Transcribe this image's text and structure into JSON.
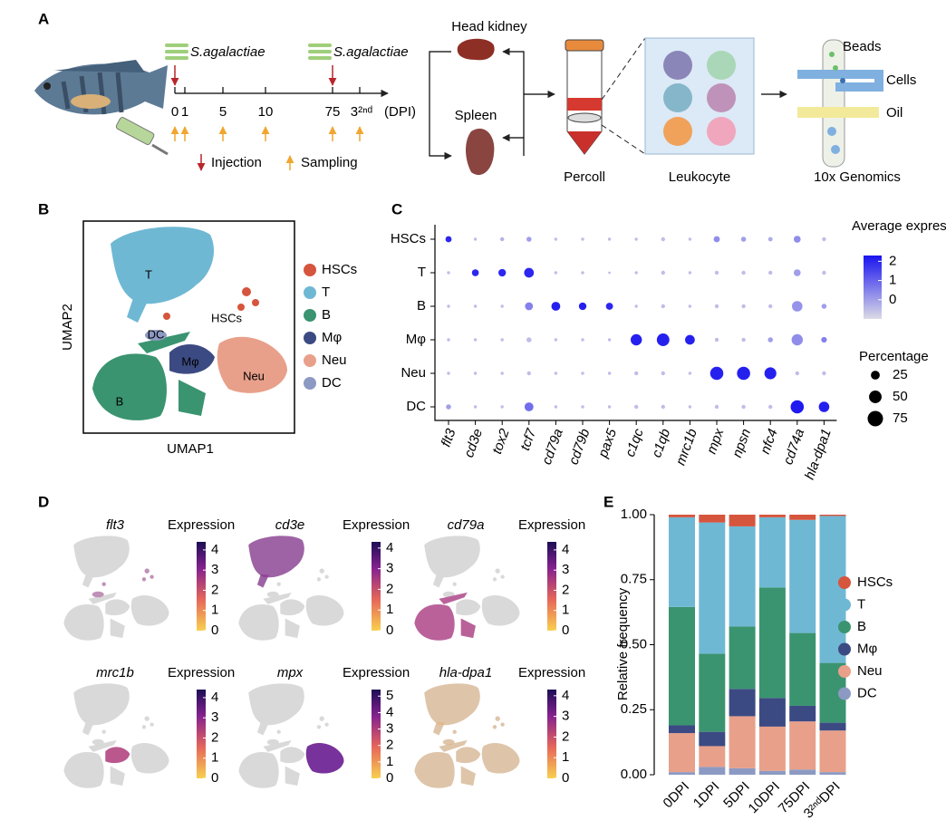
{
  "panels": [
    "A",
    "B",
    "C",
    "D",
    "E"
  ],
  "schematic": {
    "pathogen": "S.agalactiae",
    "timeline": [
      "0",
      "1",
      "5",
      "10",
      "75",
      "3²ⁿᵈ"
    ],
    "timeline_unit": "(DPI)",
    "injection": "Injection",
    "sampling": "Sampling",
    "organs": [
      "Head kidney",
      "Spleen"
    ],
    "steps": [
      "Percoll",
      "Leukocyte",
      "10x Genomics"
    ],
    "droplet_labels": [
      "Beads",
      "Cells",
      "Oil"
    ]
  },
  "umap": {
    "xlabel": "UMAP1",
    "ylabel": "UMAP2",
    "clusters": [
      {
        "name": "HSCs",
        "color": "#d6553d"
      },
      {
        "name": "T",
        "color": "#6fb8d4"
      },
      {
        "name": "B",
        "color": "#3a9470"
      },
      {
        "name": "Mφ",
        "color": "#3c4a83"
      },
      {
        "name": "Neu",
        "color": "#e8a08a"
      },
      {
        "name": "DC",
        "color": "#8c9ac3"
      }
    ]
  },
  "feature_plots": {
    "colorbar_title": "Expression",
    "plots": [
      {
        "gene": "flt3",
        "lim": [
          0,
          4.4
        ],
        "ticks": [
          0,
          1,
          2,
          3,
          4
        ]
      },
      {
        "gene": "cd3e",
        "lim": [
          0,
          4.3
        ],
        "ticks": [
          0,
          1,
          2,
          3,
          4
        ]
      },
      {
        "gene": "cd79a",
        "lim": [
          0,
          4.4
        ],
        "ticks": [
          0,
          1,
          2,
          3,
          4
        ]
      },
      {
        "gene": "mrc1b",
        "lim": [
          0,
          4.4
        ],
        "ticks": [
          0,
          1,
          2,
          3,
          4
        ]
      },
      {
        "gene": "mpx",
        "lim": [
          0,
          5.4
        ],
        "ticks": [
          0,
          1,
          2,
          3,
          4,
          5
        ]
      },
      {
        "gene": "hla-dpa1",
        "lim": [
          0,
          4.3
        ],
        "ticks": [
          0,
          1,
          2,
          3,
          4
        ]
      }
    ]
  },
  "chart_data": [
    {
      "type": "dot",
      "categories": [
        "flt3",
        "cd3e",
        "tox2",
        "tcf7",
        "cd79a",
        "cd79b",
        "pax5",
        "c1qc",
        "c1qb",
        "mrc1b",
        "mpx",
        "npsn",
        "nfc4",
        "cd74a",
        "hla-dpa1"
      ],
      "series": [
        {
          "name": "HSCs",
          "values": [
            2.0,
            -0.5,
            -0.3,
            0,
            -0.5,
            -0.5,
            -0.5,
            -0.5,
            -0.5,
            -0.5,
            0.3,
            0,
            -0.2,
            0.3,
            -0.5
          ],
          "sizes": [
            12,
            3,
            5,
            8,
            3,
            3,
            3,
            3,
            5,
            3,
            12,
            8,
            6,
            15,
            5
          ]
        },
        {
          "name": "T",
          "values": [
            -0.5,
            2.0,
            2.0,
            2.0,
            -0.5,
            -0.5,
            -0.5,
            -0.5,
            -0.5,
            -0.5,
            -0.5,
            -0.5,
            -0.5,
            0,
            -0.5
          ],
          "sizes": [
            3,
            15,
            18,
            30,
            3,
            3,
            2,
            3,
            5,
            3,
            5,
            5,
            5,
            15,
            5
          ]
        },
        {
          "name": "B",
          "values": [
            -0.5,
            -0.5,
            -0.5,
            0.5,
            2.1,
            2.1,
            2.0,
            -0.5,
            -0.5,
            -0.5,
            -0.5,
            -0.5,
            -0.5,
            0.2,
            0
          ],
          "sizes": [
            3,
            3,
            3,
            20,
            25,
            18,
            16,
            3,
            5,
            3,
            5,
            5,
            5,
            35,
            8
          ]
        },
        {
          "name": "Mφ",
          "values": [
            -0.5,
            -0.5,
            -0.5,
            -0.5,
            -0.5,
            -0.5,
            -0.5,
            2.1,
            2.1,
            2.1,
            -0.5,
            -0.5,
            0,
            0.3,
            0.5
          ],
          "sizes": [
            3,
            3,
            3,
            8,
            3,
            3,
            3,
            40,
            50,
            30,
            5,
            5,
            8,
            40,
            10
          ]
        },
        {
          "name": "Neu",
          "values": [
            -0.5,
            -0.5,
            -0.5,
            -0.5,
            -0.5,
            -0.5,
            -0.5,
            -0.5,
            -0.5,
            -0.5,
            2.1,
            2.1,
            2.1,
            -0.5,
            -0.5
          ],
          "sizes": [
            3,
            3,
            3,
            5,
            3,
            3,
            3,
            5,
            5,
            3,
            55,
            55,
            45,
            5,
            5
          ]
        },
        {
          "name": "DC",
          "values": [
            0,
            -0.5,
            -0.5,
            0.8,
            -0.5,
            -0.5,
            -0.5,
            -0.5,
            -0.5,
            -0.5,
            -0.5,
            -0.5,
            -0.5,
            2.2,
            2.1
          ],
          "sizes": [
            8,
            3,
            3,
            25,
            3,
            3,
            3,
            5,
            5,
            3,
            5,
            5,
            5,
            55,
            35
          ]
        }
      ],
      "color_title": "Average expression",
      "colorlim": [
        -1,
        2.3
      ],
      "colorticks": [
        0,
        1,
        2
      ],
      "colors": [
        "#dcdbe6",
        "#1a14f0"
      ],
      "size_title": "Percentage",
      "size_ticks": [
        25,
        50,
        75
      ]
    },
    {
      "type": "bar",
      "stacked": true,
      "categories": [
        "0DPI",
        "1DPI",
        "5DPI",
        "10DPI",
        "75DPI",
        "3²ⁿᵈDPI"
      ],
      "series": [
        {
          "name": "HSCs",
          "color": "#d6553d",
          "values": [
            0.01,
            0.03,
            0.045,
            0.01,
            0.02,
            0.005
          ]
        },
        {
          "name": "T",
          "color": "#6fb8d4",
          "values": [
            0.345,
            0.505,
            0.385,
            0.27,
            0.435,
            0.565
          ]
        },
        {
          "name": "B",
          "color": "#3a9470",
          "values": [
            0.455,
            0.3,
            0.24,
            0.425,
            0.28,
            0.23
          ]
        },
        {
          "name": "Mφ",
          "color": "#3c4a83",
          "values": [
            0.03,
            0.055,
            0.105,
            0.11,
            0.06,
            0.03
          ]
        },
        {
          "name": "Neu",
          "color": "#e8a08a",
          "values": [
            0.15,
            0.08,
            0.2,
            0.17,
            0.185,
            0.16
          ]
        },
        {
          "name": "DC",
          "color": "#8c9ac3",
          "values": [
            0.01,
            0.03,
            0.025,
            0.015,
            0.02,
            0.01
          ]
        }
      ],
      "ylabel": "Relative frequency",
      "ylim": [
        0,
        1
      ],
      "yticks": [
        {
          "value": 0,
          "label": "0.00"
        },
        {
          "value": 0.25,
          "label": "0.25"
        },
        {
          "value": 0.5,
          "label": "0.50"
        },
        {
          "value": 0.75,
          "label": "0.75"
        },
        {
          "value": 1,
          "label": "1.00"
        }
      ]
    }
  ]
}
